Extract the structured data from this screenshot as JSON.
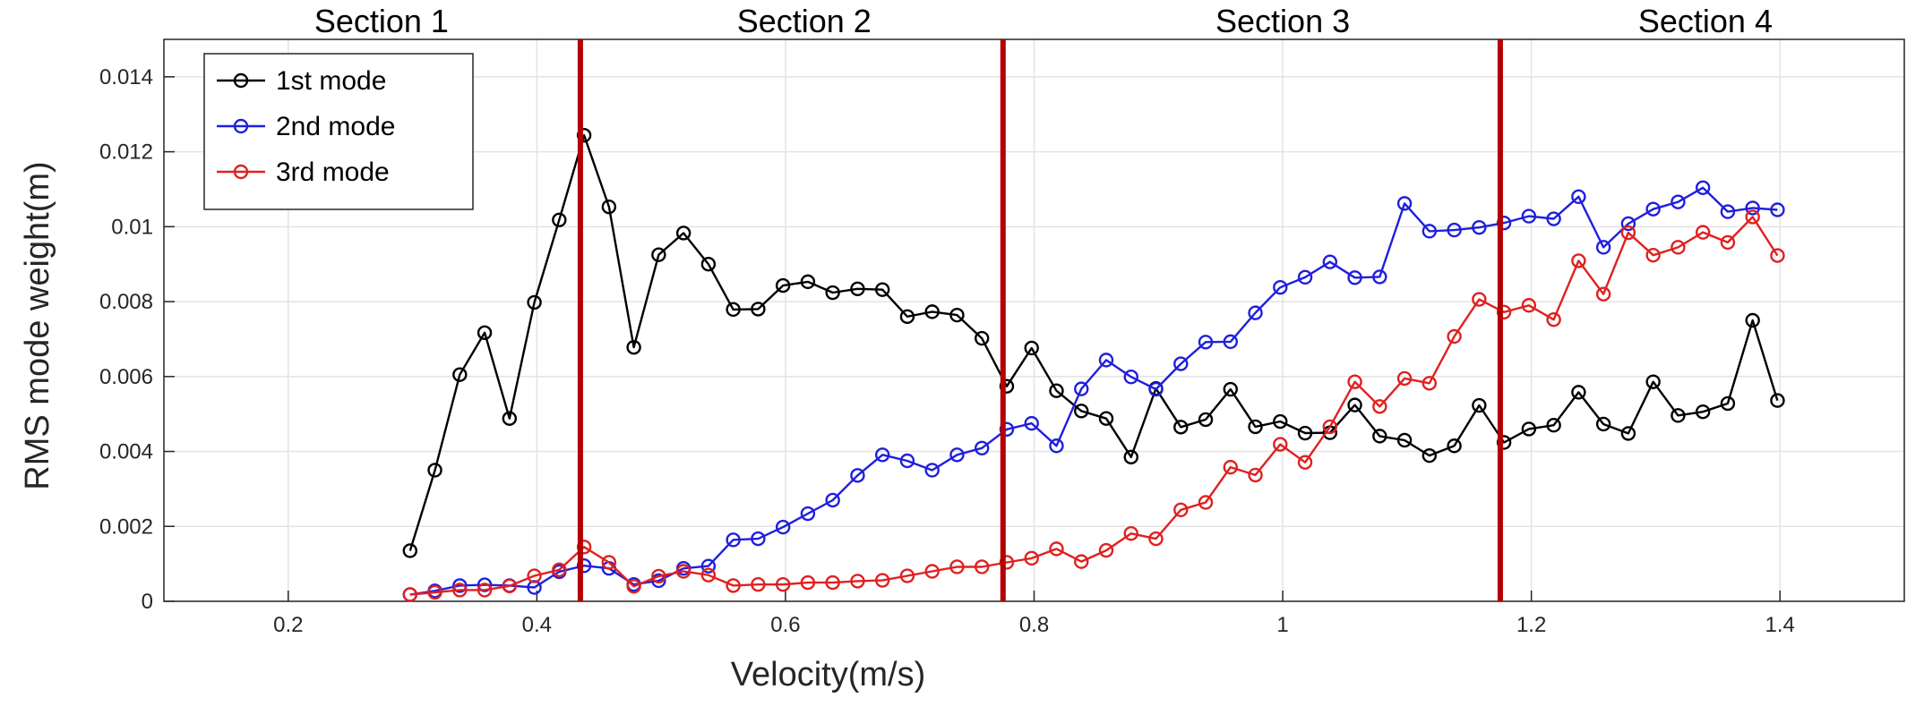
{
  "chart_data": {
    "type": "line",
    "xlabel": "Velocity(m/s)",
    "ylabel": "RMS mode weight(m)",
    "xlim": [
      0.1,
      1.5
    ],
    "ylim": [
      0,
      0.015
    ],
    "xticks": [
      0.2,
      0.4,
      0.6,
      0.8,
      1,
      1.2,
      1.4
    ],
    "yticks": [
      0,
      0.002,
      0.004,
      0.006,
      0.008,
      0.01,
      0.012,
      0.014
    ],
    "xtick_labels": [
      "0.2",
      "0.4",
      "0.6",
      "0.8",
      "1",
      "1.2",
      "1.4"
    ],
    "ytick_labels": [
      "0",
      "0.002",
      "0.004",
      "0.006",
      "0.008",
      "0.01",
      "0.012",
      "0.014"
    ],
    "grid": true,
    "legend_position": "top-left",
    "section_boundaries": [
      0.435,
      0.775,
      1.175
    ],
    "boundary_color": "#b30000",
    "sections": [
      {
        "label": "Section 1",
        "x_center": 0.275
      },
      {
        "label": "Section 2",
        "x_center": 0.615
      },
      {
        "label": "Section 3",
        "x_center": 1.0
      },
      {
        "label": "Section 4",
        "x_center": 1.34
      }
    ],
    "x": [
      0.298,
      0.318,
      0.338,
      0.358,
      0.378,
      0.398,
      0.418,
      0.438,
      0.458,
      0.478,
      0.498,
      0.518,
      0.538,
      0.558,
      0.578,
      0.598,
      0.618,
      0.638,
      0.658,
      0.678,
      0.698,
      0.718,
      0.738,
      0.758,
      0.778,
      0.798,
      0.818,
      0.838,
      0.858,
      0.878,
      0.898,
      0.918,
      0.938,
      0.958,
      0.978,
      0.998,
      1.018,
      1.038,
      1.058,
      1.078,
      1.098,
      1.118,
      1.138,
      1.158,
      1.178,
      1.198,
      1.218,
      1.238,
      1.258,
      1.278,
      1.298,
      1.318,
      1.338,
      1.358,
      1.378,
      1.398
    ],
    "series": [
      {
        "name": "1st  mode",
        "color": "#000000",
        "values": [
          0.00135,
          0.0035,
          0.00605,
          0.00717,
          0.00488,
          0.00798,
          0.01018,
          0.01244,
          0.01053,
          0.00678,
          0.00925,
          0.00983,
          0.009,
          0.00779,
          0.0078,
          0.00843,
          0.00853,
          0.00824,
          0.00834,
          0.00832,
          0.0076,
          0.00773,
          0.00764,
          0.00702,
          0.00574,
          0.00676,
          0.00562,
          0.00508,
          0.00488,
          0.00385,
          0.00568,
          0.00465,
          0.00485,
          0.00566,
          0.00466,
          0.0048,
          0.00449,
          0.0045,
          0.00524,
          0.00441,
          0.0043,
          0.00389,
          0.00415,
          0.00523,
          0.00424,
          0.0046,
          0.0047,
          0.00558,
          0.00473,
          0.00448,
          0.00586,
          0.00496,
          0.00506,
          0.00528,
          0.0075,
          0.00536
        ]
      },
      {
        "name": "2nd mode",
        "color": "#1f1fdd",
        "values": [
          0.00018,
          0.00028,
          0.00042,
          0.00044,
          0.00042,
          0.00037,
          0.00079,
          0.00095,
          0.00088,
          0.00045,
          0.00055,
          0.00088,
          0.00094,
          0.00164,
          0.00167,
          0.00198,
          0.00234,
          0.0027,
          0.00336,
          0.00391,
          0.00375,
          0.0035,
          0.00391,
          0.00409,
          0.00459,
          0.00475,
          0.00415,
          0.00567,
          0.00644,
          0.00599,
          0.00566,
          0.00634,
          0.00692,
          0.00693,
          0.0077,
          0.00838,
          0.00865,
          0.00906,
          0.00864,
          0.00866,
          0.01062,
          0.00988,
          0.00991,
          0.00998,
          0.0101,
          0.01028,
          0.01021,
          0.0108,
          0.00945,
          0.01008,
          0.01047,
          0.01066,
          0.01104,
          0.0104,
          0.0105,
          0.01045
        ]
      },
      {
        "name": "3rd  mode",
        "color": "#e02020",
        "values": [
          0.00018,
          0.00024,
          0.0003,
          0.0003,
          0.00041,
          0.00068,
          0.00084,
          0.00145,
          0.00104,
          0.0004,
          0.00067,
          0.0008,
          0.0007,
          0.00042,
          0.00045,
          0.00045,
          0.0005,
          0.0005,
          0.00054,
          0.00056,
          0.00068,
          0.0008,
          0.00092,
          0.00092,
          0.00104,
          0.00115,
          0.0014,
          0.00106,
          0.00136,
          0.00181,
          0.00167,
          0.00244,
          0.00264,
          0.00358,
          0.00337,
          0.00419,
          0.00371,
          0.00466,
          0.00586,
          0.0052,
          0.00595,
          0.00582,
          0.00707,
          0.00806,
          0.00772,
          0.0079,
          0.00752,
          0.00909,
          0.0082,
          0.00984,
          0.00924,
          0.00945,
          0.00985,
          0.00958,
          0.01026,
          0.00923
        ]
      }
    ]
  }
}
